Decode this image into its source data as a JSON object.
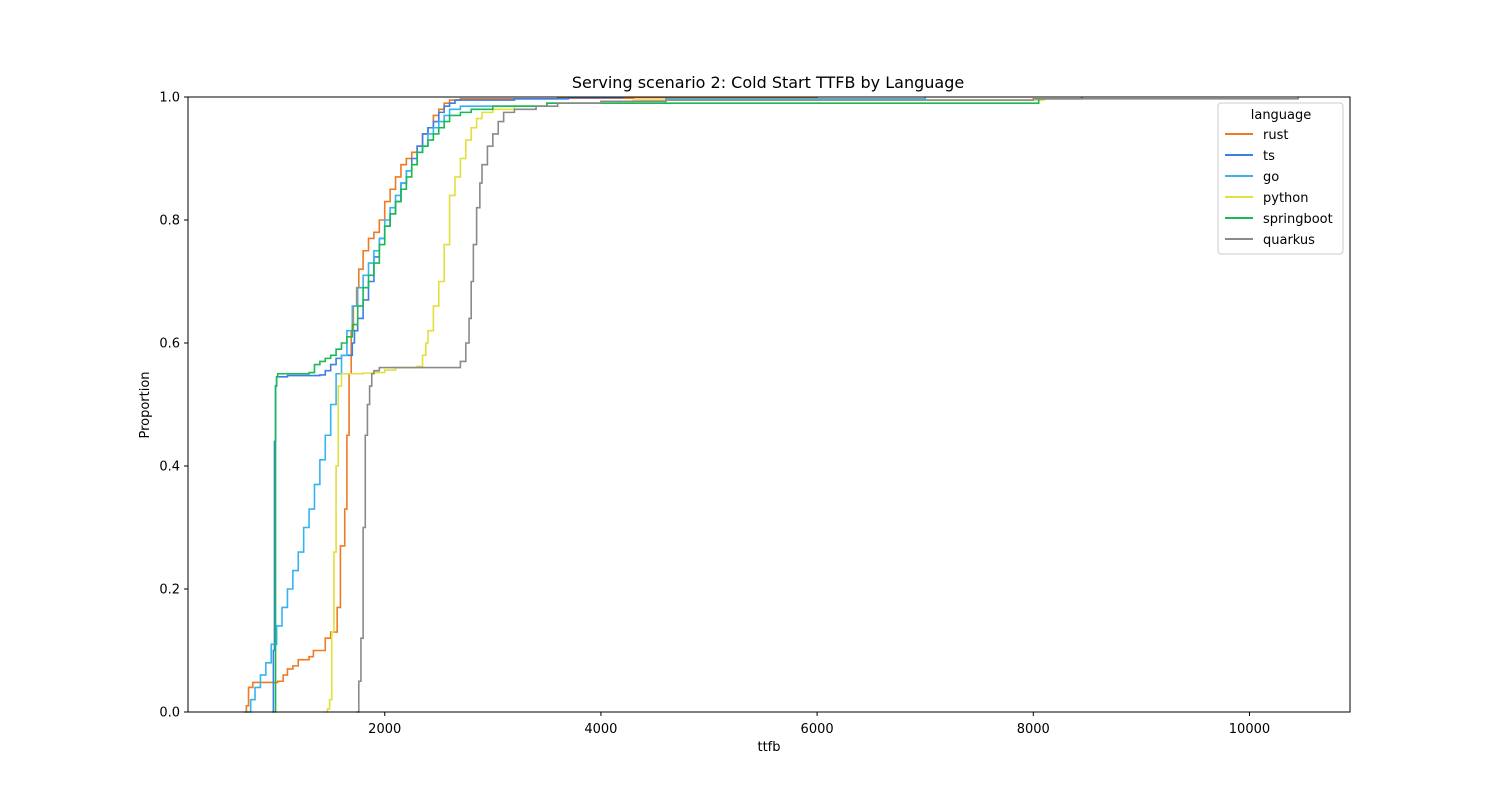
{
  "chart_data": {
    "type": "line",
    "subtype": "ecdf",
    "title": "Serving scenario 2: Cold Start TTFB by Language",
    "xlabel": "ttfb",
    "ylabel": "Proportion",
    "xlim": [
      180,
      10930
    ],
    "ylim": [
      0.0,
      1.0
    ],
    "x_ticks": [
      2000,
      4000,
      6000,
      8000,
      10000
    ],
    "y_ticks": [
      0.0,
      0.2,
      0.4,
      0.6,
      0.8,
      1.0
    ],
    "x_tick_labels": [
      "2000",
      "4000",
      "6000",
      "8000",
      "10000"
    ],
    "y_tick_labels": [
      "0.0",
      "0.2",
      "0.4",
      "0.6",
      "0.8",
      "1.0"
    ],
    "grid": false,
    "legend": {
      "title": "language",
      "placement": "top-right"
    },
    "series": [
      {
        "name": "rust",
        "color": "#ee7a22",
        "x": [
          700,
          720,
          740,
          780,
          900,
          1010,
          1060,
          1100,
          1150,
          1200,
          1300,
          1340,
          1400,
          1450,
          1500,
          1560,
          1590,
          1630,
          1650,
          1670,
          1690,
          1710,
          1740,
          1760,
          1800,
          1850,
          1900,
          1950,
          2000,
          2050,
          2100,
          2150,
          2200,
          2250,
          2300,
          2350,
          2400,
          2450,
          2500,
          2550,
          2600,
          2700,
          3600,
          4300,
          6000
        ],
        "y": [
          0.0,
          0.01,
          0.04,
          0.048,
          0.048,
          0.05,
          0.06,
          0.07,
          0.075,
          0.085,
          0.09,
          0.1,
          0.1,
          0.12,
          0.13,
          0.17,
          0.27,
          0.33,
          0.45,
          0.55,
          0.62,
          0.66,
          0.69,
          0.72,
          0.75,
          0.77,
          0.78,
          0.8,
          0.83,
          0.85,
          0.87,
          0.89,
          0.9,
          0.91,
          0.92,
          0.94,
          0.95,
          0.97,
          0.98,
          0.99,
          0.995,
          0.997,
          0.998,
          0.999,
          1.0
        ]
      },
      {
        "name": "ts",
        "color": "#3a7ee6",
        "x": [
          960,
          970,
          980,
          990,
          1000,
          1100,
          1400,
          1450,
          1500,
          1550,
          1600,
          1650,
          1700,
          1720,
          1750,
          1800,
          1850,
          1900,
          1950,
          2000,
          2050,
          2100,
          2150,
          2200,
          2250,
          2300,
          2350,
          2400,
          2450,
          2500,
          2550,
          2600,
          2650,
          3200,
          3700,
          4200
        ],
        "y": [
          0.0,
          0.1,
          0.44,
          0.53,
          0.545,
          0.547,
          0.548,
          0.555,
          0.565,
          0.575,
          0.58,
          0.58,
          0.6,
          0.62,
          0.64,
          0.67,
          0.7,
          0.74,
          0.77,
          0.79,
          0.81,
          0.83,
          0.86,
          0.88,
          0.9,
          0.92,
          0.94,
          0.95,
          0.96,
          0.975,
          0.985,
          0.99,
          0.995,
          0.997,
          0.999,
          1.0
        ]
      },
      {
        "name": "go",
        "color": "#36b4f0",
        "x": [
          720,
          760,
          800,
          850,
          900,
          950,
          1000,
          1050,
          1100,
          1150,
          1200,
          1250,
          1300,
          1350,
          1400,
          1450,
          1500,
          1550,
          1600,
          1650,
          1700,
          1750,
          1800,
          1850,
          1900,
          1950,
          2000,
          2050,
          2100,
          2150,
          2200,
          2250,
          2300,
          2350,
          2400,
          2450,
          2500,
          2550,
          2600,
          2700,
          3500,
          4600,
          7000
        ],
        "y": [
          0.0,
          0.02,
          0.04,
          0.06,
          0.08,
          0.11,
          0.14,
          0.17,
          0.2,
          0.23,
          0.26,
          0.3,
          0.33,
          0.37,
          0.41,
          0.45,
          0.5,
          0.55,
          0.58,
          0.62,
          0.66,
          0.69,
          0.71,
          0.73,
          0.75,
          0.77,
          0.8,
          0.82,
          0.84,
          0.86,
          0.88,
          0.89,
          0.91,
          0.92,
          0.94,
          0.95,
          0.96,
          0.97,
          0.98,
          0.985,
          0.99,
          0.997,
          1.0
        ]
      },
      {
        "name": "python",
        "color": "#e2e03a",
        "x": [
          1450,
          1470,
          1490,
          1510,
          1530,
          1550,
          1570,
          1600,
          1700,
          1800,
          1900,
          2000,
          2100,
          2300,
          2350,
          2380,
          2400,
          2450,
          2500,
          2550,
          2600,
          2650,
          2700,
          2750,
          2800,
          2850,
          2900,
          3000,
          3200,
          3500,
          4300,
          8100,
          8450
        ],
        "y": [
          0.0,
          0.005,
          0.02,
          0.13,
          0.26,
          0.4,
          0.53,
          0.55,
          0.55,
          0.551,
          0.552,
          0.556,
          0.56,
          0.562,
          0.58,
          0.6,
          0.62,
          0.66,
          0.7,
          0.76,
          0.84,
          0.87,
          0.9,
          0.93,
          0.95,
          0.965,
          0.975,
          0.98,
          0.985,
          0.99,
          0.995,
          0.997,
          1.0
        ]
      },
      {
        "name": "springboot",
        "color": "#1ab954",
        "x": [
          980,
          990,
          1000,
          1010,
          1300,
          1350,
          1400,
          1450,
          1500,
          1550,
          1600,
          1650,
          1700,
          1750,
          1800,
          1850,
          1900,
          1950,
          2000,
          2050,
          2100,
          2150,
          2200,
          2250,
          2300,
          2350,
          2400,
          2450,
          2500,
          2550,
          2600,
          2700,
          2800,
          3000,
          3500,
          8050,
          8450
        ],
        "y": [
          0.0,
          0.53,
          0.545,
          0.55,
          0.552,
          0.565,
          0.57,
          0.575,
          0.58,
          0.59,
          0.6,
          0.61,
          0.63,
          0.66,
          0.69,
          0.71,
          0.73,
          0.76,
          0.79,
          0.81,
          0.83,
          0.85,
          0.87,
          0.89,
          0.91,
          0.92,
          0.93,
          0.94,
          0.95,
          0.96,
          0.97,
          0.975,
          0.98,
          0.985,
          0.99,
          0.997,
          1.0
        ]
      },
      {
        "name": "quarkus",
        "color": "#8a8a8a",
        "x": [
          1740,
          1760,
          1780,
          1800,
          1820,
          1840,
          1860,
          1880,
          1900,
          1950,
          2000,
          2100,
          2300,
          2500,
          2700,
          2750,
          2780,
          2800,
          2820,
          2850,
          2880,
          2900,
          2950,
          3000,
          3050,
          3100,
          3200,
          3400,
          3600,
          4000,
          4600,
          8000,
          10450
        ],
        "y": [
          0.0,
          0.05,
          0.12,
          0.3,
          0.45,
          0.5,
          0.53,
          0.55,
          0.555,
          0.56,
          0.56,
          0.56,
          0.56,
          0.56,
          0.57,
          0.6,
          0.64,
          0.7,
          0.76,
          0.82,
          0.86,
          0.89,
          0.92,
          0.94,
          0.96,
          0.975,
          0.98,
          0.985,
          0.99,
          0.993,
          0.995,
          0.997,
          1.0
        ]
      }
    ]
  }
}
